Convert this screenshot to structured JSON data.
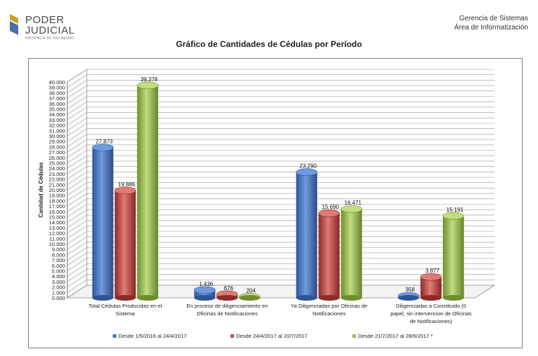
{
  "header": {
    "org_line1": "PODER",
    "org_line2": "JUDICIAL",
    "org_line3": "PROVINCIA DE RIO NEGRO",
    "dept_line1": "Gerencia de Sistemas",
    "dept_line2": "Área de Informatización"
  },
  "colors": {
    "series": [
      "#4472c4",
      "#c0504d",
      "#9bbb59"
    ],
    "grid": "#8c8c8c",
    "text": "#222222"
  },
  "chart_data": {
    "type": "bar",
    "title": "Gráfico de Cantidades de Cédulas por Período",
    "ylabel": "Cantidad de Cédulas",
    "xlabel": "",
    "ylim": [
      0,
      40000
    ],
    "ytick_step": 1000,
    "grid": true,
    "legend_position": "bottom",
    "categories": [
      [
        "Total Cédulas Producidas en el",
        "Sistema"
      ],
      [
        "En proceso de diligenciamiento en",
        "Oficinas de Notificaciones"
      ],
      [
        "Ya Diligenciadas por Oficinas de",
        "Notificaciones"
      ],
      [
        "Diligenciadas a Constituido (0",
        "papel, sin intervencion de Oficinas",
        "de Notificaciones)"
      ]
    ],
    "series": [
      {
        "name": "Desde 1/5/2016 al 24/4/2017",
        "values": [
          27873,
          1436,
          23290,
          358
        ],
        "labels": [
          "27.873",
          "1.436",
          "23.290",
          "358"
        ]
      },
      {
        "name": "Desde 24/4/2017 al 20/7/2017",
        "values": [
          19886,
          676,
          15690,
          3877
        ],
        "labels": [
          "19.886",
          "676",
          "15.690",
          "3.877"
        ]
      },
      {
        "name": "Desde 21/7/2017 al 28/9/2017 *",
        "values": [
          39378,
          204,
          16471,
          15191
        ],
        "labels": [
          "39.378",
          "204",
          "16.471",
          "15.191"
        ]
      }
    ]
  }
}
